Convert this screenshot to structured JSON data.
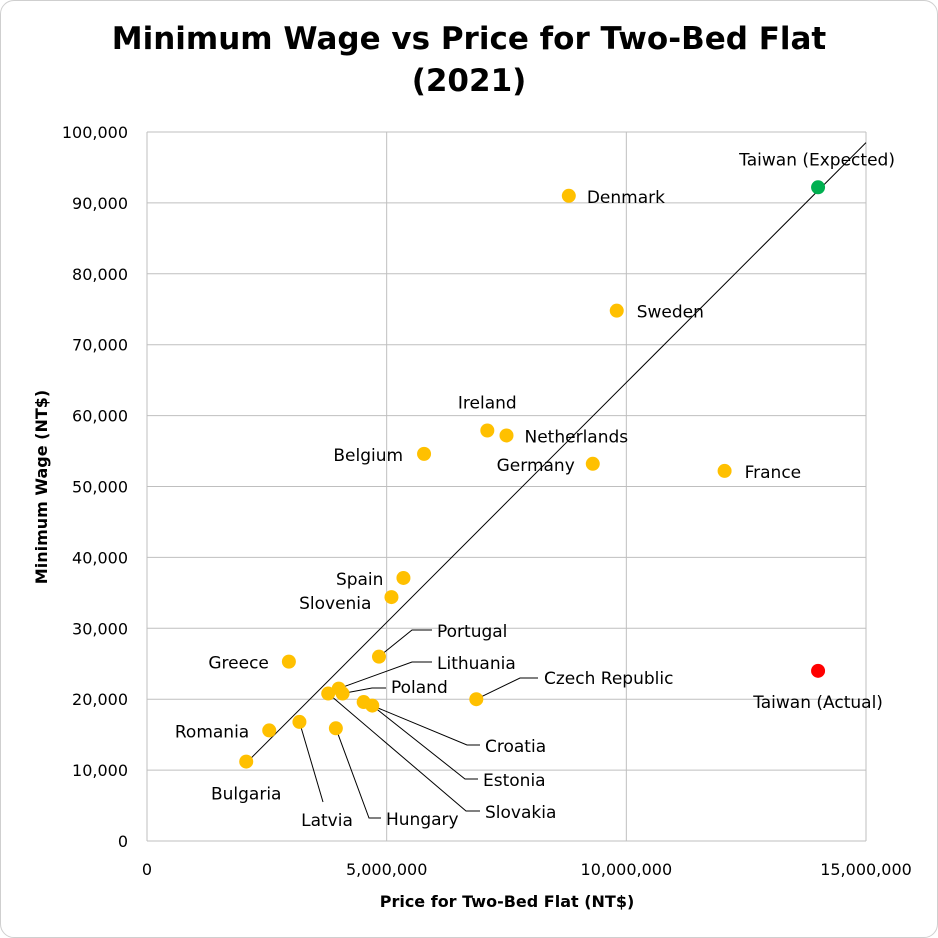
{
  "chart_data": {
    "type": "scatter",
    "title_line1": "Minimum Wage vs Price for Two-Bed Flat",
    "title_line2": "(2021)",
    "xlabel": "Price for Two-Bed Flat (NT$)",
    "ylabel": "Minimum Wage (NT$)",
    "xlim": [
      0,
      15000000
    ],
    "ylim": [
      0,
      100000
    ],
    "grid": true,
    "x_ticks": [
      {
        "value": 0,
        "label": "0"
      },
      {
        "value": 5000000,
        "label": "5,000,000"
      },
      {
        "value": 10000000,
        "label": "10,000,000"
      },
      {
        "value": 15000000,
        "label": "15,000,000"
      }
    ],
    "y_ticks": [
      {
        "value": 0,
        "label": "0"
      },
      {
        "value": 10000,
        "label": "10,000"
      },
      {
        "value": 20000,
        "label": "20,000"
      },
      {
        "value": 30000,
        "label": "30,000"
      },
      {
        "value": 40000,
        "label": "40,000"
      },
      {
        "value": 50000,
        "label": "50,000"
      },
      {
        "value": 60000,
        "label": "60,000"
      },
      {
        "value": 70000,
        "label": "70,000"
      },
      {
        "value": 80000,
        "label": "80,000"
      },
      {
        "value": 90000,
        "label": "90,000"
      },
      {
        "value": 100000,
        "label": "100,000"
      }
    ],
    "trendline": {
      "x": [
        2070000,
        15000000
      ],
      "y": [
        11000,
        98500
      ],
      "color": "#000000"
    },
    "colors": {
      "country": "#FFC000",
      "expected": "#00B050",
      "actual": "#FF0000",
      "grid": "#bfbfbf"
    },
    "points": [
      {
        "name": "Denmark",
        "x": 8800000,
        "y": 91000,
        "color_key": "country"
      },
      {
        "name": "Sweden",
        "x": 9800000,
        "y": 74800,
        "color_key": "country"
      },
      {
        "name": "Ireland",
        "x": 7100000,
        "y": 57900,
        "color_key": "country"
      },
      {
        "name": "Netherlands",
        "x": 7500000,
        "y": 57200,
        "color_key": "country"
      },
      {
        "name": "Belgium",
        "x": 5780000,
        "y": 54600,
        "color_key": "country"
      },
      {
        "name": "Germany",
        "x": 9300000,
        "y": 53200,
        "color_key": "country"
      },
      {
        "name": "France",
        "x": 12050000,
        "y": 52200,
        "color_key": "country"
      },
      {
        "name": "Spain",
        "x": 5350000,
        "y": 37100,
        "color_key": "country"
      },
      {
        "name": "Slovenia",
        "x": 5100000,
        "y": 34400,
        "color_key": "country"
      },
      {
        "name": "Portugal",
        "x": 4840000,
        "y": 26000,
        "color_key": "country"
      },
      {
        "name": "Greece",
        "x": 2960000,
        "y": 25300,
        "color_key": "country"
      },
      {
        "name": "Lithuania",
        "x": 4000000,
        "y": 21500,
        "color_key": "country"
      },
      {
        "name": "Poland",
        "x": 4080000,
        "y": 20800,
        "color_key": "country"
      },
      {
        "name": "Czech Republic",
        "x": 6870000,
        "y": 20000,
        "color_key": "country"
      },
      {
        "name": "Slovakia",
        "x": 3780000,
        "y": 20800,
        "color_key": "country"
      },
      {
        "name": "Croatia",
        "x": 4520000,
        "y": 19600,
        "color_key": "country"
      },
      {
        "name": "Estonia",
        "x": 4700000,
        "y": 19100,
        "color_key": "country"
      },
      {
        "name": "Latvia",
        "x": 3180000,
        "y": 16800,
        "color_key": "country"
      },
      {
        "name": "Hungary",
        "x": 3940000,
        "y": 15900,
        "color_key": "country"
      },
      {
        "name": "Romania",
        "x": 2550000,
        "y": 15600,
        "color_key": "country"
      },
      {
        "name": "Bulgaria",
        "x": 2070000,
        "y": 11200,
        "color_key": "country"
      },
      {
        "name": "Taiwan (Expected)",
        "x": 14000000,
        "y": 92200,
        "color_key": "expected"
      },
      {
        "name": "Taiwan (Actual)",
        "x": 14000000,
        "y": 24000,
        "color_key": "actual"
      }
    ]
  }
}
